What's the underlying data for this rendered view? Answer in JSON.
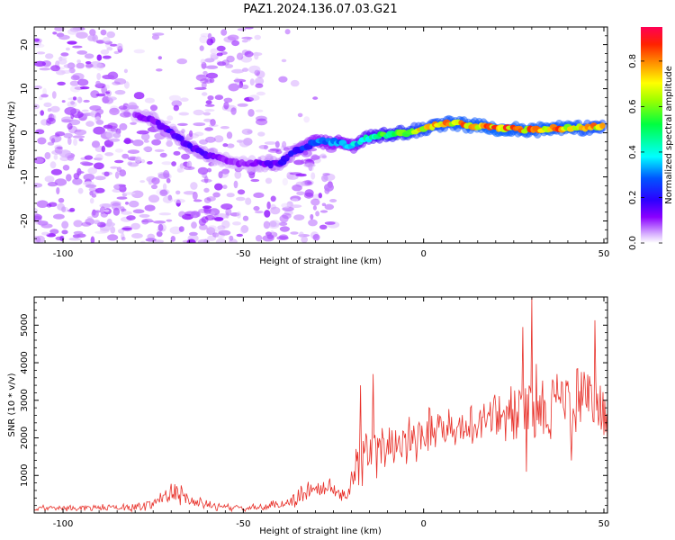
{
  "figure_title": "PAZ1.2024.136.07.03.G21",
  "chart_data": [
    {
      "type": "heatmap",
      "xlabel": "Height of straight line (km)",
      "ylabel": "Frequency (Hz)",
      "xlim": [
        -108,
        51
      ],
      "ylim": [
        -25,
        24
      ],
      "xticks": [
        -100,
        -50,
        0,
        50
      ],
      "xtick_labels": [
        "-100",
        "-50",
        "0",
        "50"
      ],
      "yticks": [
        -20,
        -10,
        0,
        10,
        20
      ],
      "ytick_labels": [
        "-20",
        "-10",
        "0",
        "10",
        "20"
      ],
      "colorbar": {
        "label": "Normalized spectral amplitude",
        "range": [
          0,
          0.95
        ],
        "ticks": [
          0.0,
          0.2,
          0.4,
          0.6,
          0.8
        ],
        "tick_labels": [
          "0.0",
          "0.2",
          "0.4",
          "0.6",
          "0.8"
        ]
      },
      "noise_region": {
        "x": [
          -108,
          -25
        ],
        "freq": [
          -25,
          24
        ],
        "amplitude": [
          0.02,
          0.12
        ]
      },
      "ridge": {
        "x": [
          -80,
          -75,
          -70,
          -65,
          -60,
          -55,
          -50,
          -45,
          -40,
          -35,
          -30,
          -25,
          -20,
          -15,
          -10,
          -5,
          0,
          5,
          10,
          15,
          20,
          25,
          30,
          35,
          40,
          45,
          50
        ],
        "freq": [
          4,
          3,
          0,
          -3,
          -5,
          -6,
          -7,
          -7,
          -7,
          -4,
          -2,
          -2,
          -3,
          -1,
          -0.5,
          0,
          1,
          2,
          2,
          1.5,
          1,
          1,
          0.5,
          1,
          1,
          1,
          1.5
        ],
        "amplitude": [
          0.12,
          0.14,
          0.18,
          0.2,
          0.16,
          0.12,
          0.1,
          0.14,
          0.18,
          0.25,
          0.32,
          0.35,
          0.38,
          0.5,
          0.6,
          0.7,
          0.78,
          0.82,
          0.85,
          0.85,
          0.88,
          0.86,
          0.85,
          0.86,
          0.84,
          0.82,
          0.8
        ]
      }
    },
    {
      "type": "line",
      "xlabel": "Height of straight line (km)",
      "ylabel": "SNR (10 * v/v)",
      "xlim": [
        -108,
        51
      ],
      "ylim": [
        0,
        5750
      ],
      "xticks": [
        -100,
        -50,
        0,
        50
      ],
      "xtick_labels": [
        "-100",
        "-50",
        "0",
        "50"
      ],
      "yticks": [
        1000,
        2000,
        3000,
        4000,
        5000
      ],
      "ytick_labels": [
        "1000",
        "2000",
        "3000",
        "4000",
        "5000"
      ],
      "color": "#e8312a",
      "envelope": {
        "x": [
          -108,
          -80,
          -75,
          -72,
          -70,
          -67,
          -64,
          -60,
          -55,
          -50,
          -45,
          -40,
          -36,
          -33,
          -30,
          -27,
          -24,
          -21,
          -20,
          -19,
          -17,
          -15,
          -12,
          -10,
          -8,
          -5,
          -2,
          0,
          3,
          6,
          9,
          12,
          15,
          18,
          21,
          24,
          27,
          30,
          33,
          36,
          39,
          42,
          45,
          48,
          51
        ],
        "mean": [
          120,
          150,
          250,
          450,
          600,
          450,
          300,
          220,
          150,
          120,
          150,
          220,
          350,
          550,
          650,
          700,
          550,
          450,
          1100,
          1350,
          1500,
          1600,
          1600,
          1800,
          1900,
          2000,
          2050,
          2200,
          2300,
          2350,
          2150,
          2300,
          2450,
          2500,
          2600,
          2650,
          2700,
          2800,
          2850,
          2900,
          3000,
          2950,
          3000,
          2900,
          2800
        ],
        "amp": [
          100,
          120,
          200,
          350,
          450,
          350,
          200,
          150,
          120,
          100,
          120,
          180,
          250,
          350,
          350,
          300,
          250,
          250,
          800,
          900,
          900,
          900,
          800,
          800,
          800,
          800,
          800,
          800,
          700,
          700,
          600,
          600,
          700,
          800,
          900,
          1000,
          1100,
          1300,
          1200,
          1200,
          1200,
          1200,
          1200,
          1100,
          1000
        ]
      },
      "peaks": [
        {
          "x": 30,
          "y": 5750
        },
        {
          "x": 47.5,
          "y": 5130
        },
        {
          "x": 27.5,
          "y": 4950
        },
        {
          "x": -14,
          "y": 3700
        },
        {
          "x": -17.5,
          "y": 3400
        },
        {
          "x": 28.5,
          "y": 1100
        },
        {
          "x": 41,
          "y": 1400
        },
        {
          "x": 51,
          "y": 1800
        }
      ]
    }
  ]
}
